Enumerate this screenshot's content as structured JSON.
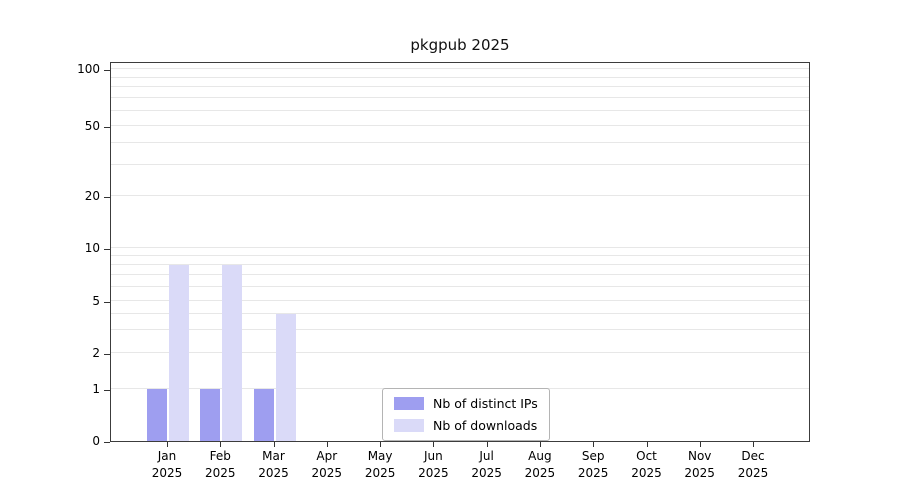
{
  "figure": {
    "title": "pkgpub 2025"
  },
  "chart_data": {
    "type": "bar",
    "title": "pkgpub 2025",
    "categories": [
      "Jan 2025",
      "Feb 2025",
      "Mar 2025",
      "Apr 2025",
      "May 2025",
      "Jun 2025",
      "Jul 2025",
      "Aug 2025",
      "Sep 2025",
      "Oct 2025",
      "Nov 2025",
      "Dec 2025"
    ],
    "series": [
      {
        "name": "Nb of distinct IPs",
        "color": "#9e9ef0",
        "values": [
          1,
          1,
          1,
          0,
          0,
          0,
          0,
          0,
          0,
          0,
          0,
          0
        ]
      },
      {
        "name": "Nb of downloads",
        "color": "#dadaf8",
        "values": [
          8,
          8,
          4,
          0,
          0,
          0,
          0,
          0,
          0,
          0,
          0,
          0
        ]
      }
    ],
    "xlabel": "",
    "ylabel": "",
    "yscale": "symlog",
    "yticks": [
      0,
      1,
      2,
      5,
      10,
      20,
      50,
      100
    ],
    "minor_gridlines": [
      1,
      2,
      3,
      4,
      5,
      6,
      7,
      8,
      9,
      10,
      20,
      30,
      40,
      50,
      60,
      70,
      80,
      90,
      100
    ],
    "ylim": [
      0,
      115
    ],
    "grid": "horizontal",
    "legend": {
      "position": "lower-center",
      "entries": [
        "Nb of distinct IPs",
        "Nb of downloads"
      ]
    }
  }
}
